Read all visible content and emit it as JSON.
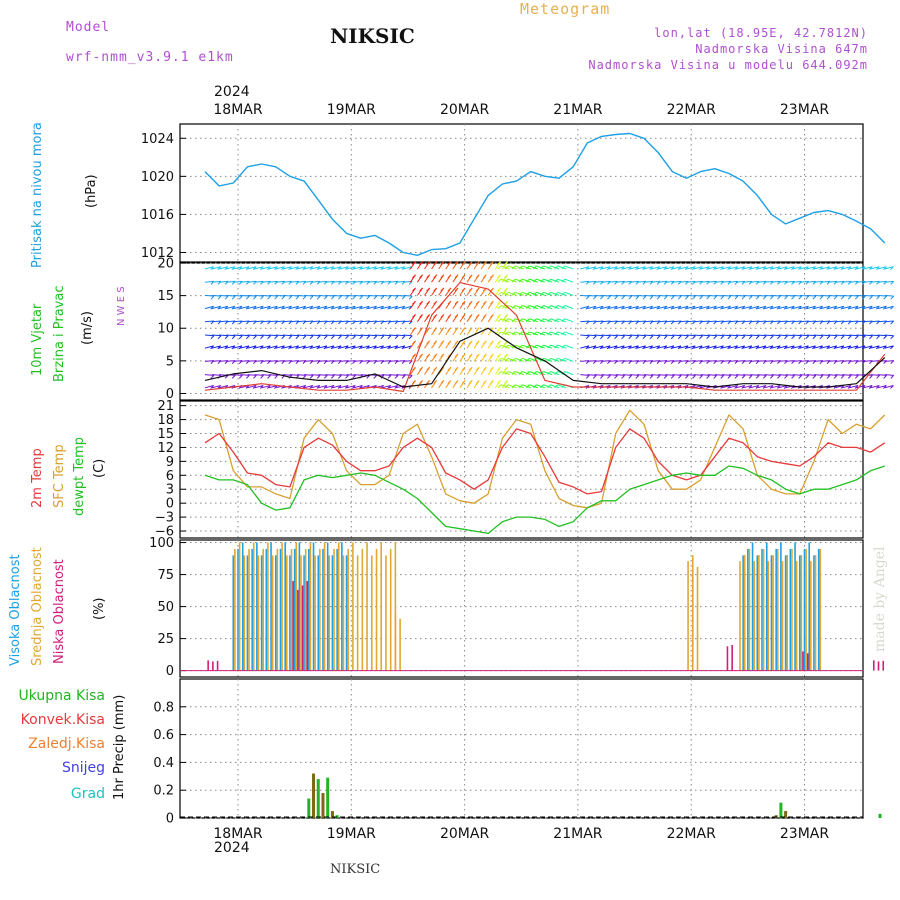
{
  "header": {
    "model_label": "Model",
    "model_name": "wrf-nmm_v3.9.1 e1km",
    "station": "NIKSIC",
    "meteogram": "Meteogram",
    "lonlat": "lon,lat (18.95E, 42.7812N)",
    "altitude": "Nadmorska Visina 647m",
    "model_altitude": "Nadmorska Visina u modelu 644.092m",
    "footer_station": "NIKSIC",
    "watermark": "made by Angel",
    "year": "2024"
  },
  "dates": [
    "18MAR",
    "19MAR",
    "20MAR",
    "21MAR",
    "22MAR",
    "23MAR"
  ],
  "panel_labels": {
    "pressure": {
      "name": "Pritisak na nivou mora",
      "unit": "(hPa)"
    },
    "wind": {
      "name1": "10m Vjetar",
      "name2": "Brzina i Pravac",
      "unit": "(m/s)",
      "compass": "N W E S"
    },
    "temp": {
      "t2m": "2m Temp",
      "sfc": "SFC Temp",
      "dew": "dewpt Temp",
      "unit": "(C)"
    },
    "cloud": {
      "high": "Visoka Oblacnost",
      "mid": "Srednja Oblacnost",
      "low": "Niska Oblacnost",
      "unit": "(%)"
    },
    "precip": {
      "total": "Ukupna Kisa",
      "conv": "Konvek.Kisa",
      "frozen": "Zaledj.Kisa",
      "snow": "Snijeg",
      "graupel": "Grad",
      "unit": "1hr Precip (mm)"
    }
  },
  "colors": {
    "pressure": "#1ea0e6",
    "t2m": "#e83a3a",
    "sfc": "#d8a030",
    "dew": "#22c022",
    "high": "#1ea0e6",
    "mid": "#e0a830",
    "low": "#d0207a",
    "total": "#22b422",
    "conv": "#e83a3a",
    "frozen": "#f08030",
    "snow": "#4040e0",
    "graupel": "#20c0c0",
    "precip_bar": "#7a6a10",
    "title_purple": "#b050d0",
    "meteogram": "#e8b050"
  },
  "chart_data": [
    {
      "type": "line",
      "title": "Pritisak na nivou mora",
      "ylabel": "(hPa)",
      "ylim": [
        1011,
        1025.5
      ],
      "yticks": [
        1012,
        1016,
        1020,
        1024
      ],
      "x_hours": [
        0,
        3,
        6,
        9,
        12,
        15,
        18,
        21,
        24,
        27,
        30,
        33,
        36,
        39,
        42,
        45,
        48,
        51,
        54,
        57,
        60,
        63,
        66,
        69,
        72,
        75,
        78,
        81,
        84,
        87,
        90,
        93,
        96,
        99,
        102,
        105,
        108,
        111,
        114,
        117,
        120,
        123,
        126,
        129,
        132,
        135,
        138,
        141,
        144
      ],
      "series": [
        {
          "name": "Pritisak na nivou mora",
          "values": [
            1020.5,
            1019,
            1019.3,
            1021,
            1021.3,
            1021,
            1020,
            1019.5,
            1017.5,
            1015.5,
            1014,
            1013.5,
            1013.8,
            1013,
            1012,
            1011.7,
            1012.3,
            1012.4,
            1013,
            1015.5,
            1018,
            1019.2,
            1019.5,
            1020.5,
            1020,
            1019.8,
            1021,
            1023.5,
            1024.2,
            1024.4,
            1024.5,
            1024,
            1022.5,
            1020.5,
            1019.8,
            1020.5,
            1020.8,
            1020.3,
            1019.5,
            1018,
            1016,
            1015,
            1015.6,
            1016.2,
            1016.4,
            1016,
            1015.3,
            1014.5,
            1013
          ]
        }
      ]
    },
    {
      "type": "line",
      "title": "10m Vjetar Brzina i Pravac",
      "ylabel": "(m/s)",
      "ylim": [
        -1,
        20
      ],
      "yticks": [
        0,
        5,
        10,
        15,
        20
      ],
      "x_hours": [
        0,
        6,
        12,
        18,
        24,
        30,
        36,
        42,
        48,
        54,
        60,
        66,
        72,
        78,
        84,
        90,
        96,
        102,
        108,
        114,
        120,
        126,
        132,
        138,
        144
      ],
      "series": [
        {
          "name": "speed",
          "values": [
            2,
            3,
            3.5,
            2.5,
            2,
            2,
            3,
            1,
            1.5,
            8,
            10,
            7,
            5,
            2,
            1.5,
            1.5,
            1.5,
            1.5,
            1,
            1.5,
            1.5,
            1,
            1,
            1.5,
            5.5
          ]
        },
        {
          "name": "gust",
          "values": [
            0.5,
            1,
            1.5,
            1,
            0.5,
            0.5,
            1,
            0.3,
            12,
            17,
            16,
            12,
            2,
            1,
            1,
            1,
            1,
            1,
            0.5,
            0.5,
            0.5,
            0.5,
            0.5,
            0.5,
            6
          ]
        }
      ]
    },
    {
      "type": "line",
      "title": "Temp",
      "ylabel": "(C)",
      "ylim": [
        -7.5,
        22
      ],
      "yticks": [
        -6,
        -3,
        0,
        3,
        6,
        9,
        12,
        15,
        18,
        21
      ],
      "x_hours": [
        0,
        3,
        6,
        9,
        12,
        15,
        18,
        21,
        24,
        27,
        30,
        33,
        36,
        39,
        42,
        45,
        48,
        51,
        54,
        57,
        60,
        63,
        66,
        69,
        72,
        75,
        78,
        81,
        84,
        87,
        90,
        93,
        96,
        99,
        102,
        105,
        108,
        111,
        114,
        117,
        120,
        123,
        126,
        129,
        132,
        135,
        138,
        141,
        144
      ],
      "series": [
        {
          "name": "2m Temp",
          "values": [
            13,
            15,
            11,
            6.5,
            6,
            4,
            3.5,
            12,
            14,
            12.5,
            9,
            7,
            7,
            8,
            12,
            14,
            12,
            6.5,
            5,
            3,
            5,
            12,
            16,
            15,
            10,
            4.5,
            3.5,
            2,
            2.5,
            12,
            16,
            14,
            9,
            6,
            5,
            6,
            10,
            14,
            13,
            10,
            9,
            8.5,
            8,
            10,
            13,
            12,
            12,
            11,
            13
          ]
        },
        {
          "name": "SFC Temp",
          "values": [
            19,
            18,
            7,
            3.5,
            3.5,
            2,
            1,
            14,
            18,
            15,
            7,
            4,
            4,
            6,
            15,
            17,
            10,
            2,
            0.5,
            0,
            2,
            14,
            18,
            17,
            7,
            1,
            -0.5,
            -1,
            0,
            15,
            20,
            17,
            7,
            3,
            3,
            5,
            12,
            19,
            16,
            6,
            3,
            2,
            2,
            9,
            18,
            15,
            17,
            16,
            19
          ]
        },
        {
          "name": "dewpt Temp",
          "values": [
            6,
            5,
            5,
            4,
            0,
            -1.5,
            -1,
            5,
            6,
            5.5,
            6,
            6.5,
            6,
            4.5,
            3,
            1,
            -2,
            -5,
            -5.5,
            -6,
            -6.5,
            -4,
            -3,
            -3,
            -3.5,
            -5,
            -4,
            -1,
            0.5,
            0.5,
            3,
            4,
            5,
            6,
            6.5,
            6,
            6,
            8,
            7.5,
            6,
            5,
            3,
            2,
            3,
            3,
            4,
            5,
            7,
            8
          ]
        }
      ]
    },
    {
      "type": "bar",
      "title": "Oblacnost",
      "ylabel": "(%)",
      "ylim": [
        -5,
        102
      ],
      "yticks": [
        0,
        25,
        50,
        75,
        100
      ],
      "series": [
        {
          "name": "Visoka Oblacnost",
          "segments": [
            [
              6,
              30,
              100
            ],
            [
              114,
              130,
              100
            ]
          ]
        },
        {
          "name": "Srednja Oblacnost",
          "segments": [
            [
              6,
              40,
              100
            ],
            [
              40,
              41,
              45
            ],
            [
              102,
              104,
              90
            ],
            [
              113,
              130,
              95
            ]
          ]
        },
        {
          "name": "Niska Oblacnost",
          "segments": [
            [
              0,
              2,
              8
            ],
            [
              18,
              21,
              70
            ],
            [
              110,
              111,
              20
            ],
            [
              126,
              127,
              15
            ],
            [
              141,
              143,
              8
            ]
          ]
        }
      ]
    },
    {
      "type": "bar",
      "title": "1hr Precip",
      "ylabel": "1hr Precip (mm)",
      "ylim": [
        0,
        1
      ],
      "yticks": [
        0,
        0.2,
        0.4,
        0.6,
        0.8
      ],
      "x_hours": [
        22,
        23,
        24,
        25,
        26,
        27,
        28,
        121,
        122,
        123,
        143
      ],
      "values": [
        0.14,
        0.32,
        0.28,
        0.18,
        0.29,
        0.05,
        0.02,
        0.02,
        0.11,
        0.05,
        0.03
      ]
    }
  ]
}
